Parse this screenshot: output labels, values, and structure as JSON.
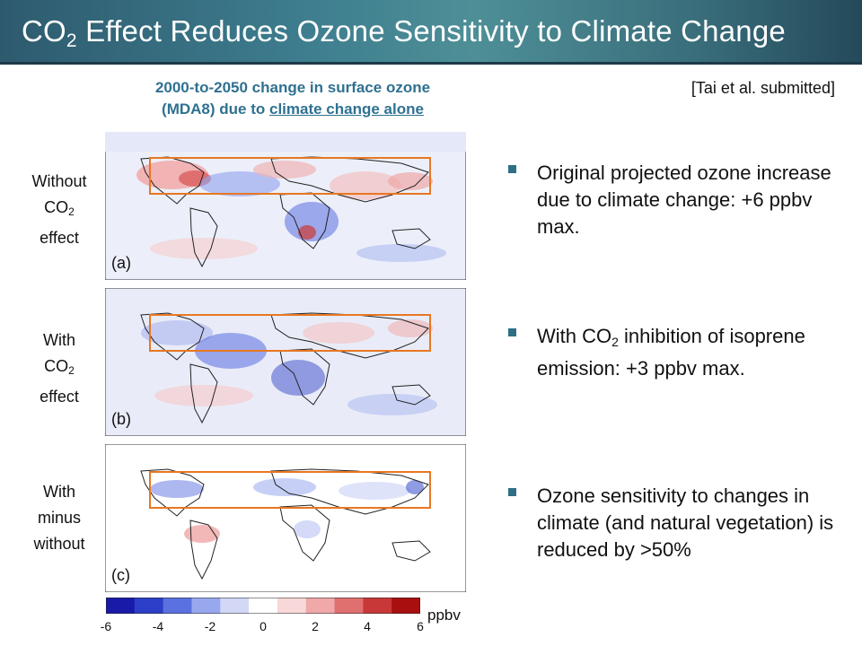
{
  "title": {
    "prefix": "CO",
    "sub": "2",
    "rest": " Effect Reduces Ozone Sensitivity to Climate Change"
  },
  "subtitle": {
    "line1": "2000-to-2050 change in surface ozone",
    "line2_prefix": "(MDA8) due to ",
    "line2_underlined": "climate change alone"
  },
  "citation": "[Tai et al. submitted]",
  "row_labels": [
    {
      "l1": "Without",
      "co": "CO",
      "sub": "2",
      "l3": "effect"
    },
    {
      "l1": "With",
      "co": "CO",
      "sub": "2",
      "l3": "effect"
    },
    {
      "l1": "With",
      "l2": "minus",
      "l3": "without"
    }
  ],
  "panels": [
    "(a)",
    "(b)",
    "(c)"
  ],
  "bullets": {
    "b1": "Original projected ozone increase due to climate change: +6 ppbv max.",
    "b2_prefix": "With CO",
    "b2_sub": "2",
    "b2_rest": " inhibition of isoprene emission: +3 ppbv max.",
    "b3": "Ozone sensitivity to changes in climate (and natural vegetation) is reduced by >50%"
  },
  "colorbar": {
    "ticks": [
      "-6",
      "-4",
      "-2",
      "0",
      "2",
      "4",
      "6"
    ],
    "unit": "ppbv",
    "colors": [
      "#1a1aa8",
      "#2d3fc8",
      "#5a72e0",
      "#98a8ee",
      "#d2d8f6",
      "#ffffff",
      "#f8d8d8",
      "#f0a8a8",
      "#e07070",
      "#c83838",
      "#a81010"
    ]
  },
  "colors": {
    "header": "#3d7d8e",
    "subtitle": "#2f7190",
    "bullet": "#2f6f85",
    "highlight_box": "#e87722"
  }
}
